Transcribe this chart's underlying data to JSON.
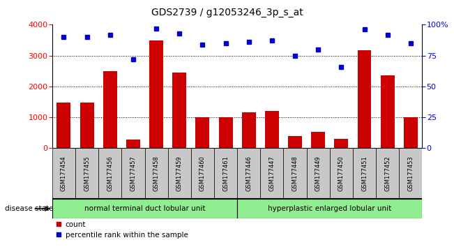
{
  "title": "GDS2739 / g12053246_3p_s_at",
  "categories": [
    "GSM177454",
    "GSM177455",
    "GSM177456",
    "GSM177457",
    "GSM177458",
    "GSM177459",
    "GSM177460",
    "GSM177461",
    "GSM177446",
    "GSM177447",
    "GSM177448",
    "GSM177449",
    "GSM177450",
    "GSM177451",
    "GSM177452",
    "GSM177453"
  ],
  "counts": [
    1480,
    1480,
    2500,
    270,
    3480,
    2450,
    1010,
    1010,
    1160,
    1210,
    390,
    540,
    310,
    3180,
    2370,
    1010
  ],
  "percentiles": [
    90,
    90,
    92,
    72,
    97,
    93,
    84,
    85,
    86,
    87,
    75,
    80,
    66,
    96,
    92,
    85
  ],
  "group1_label": "normal terminal duct lobular unit",
  "group2_label": "hyperplastic enlarged lobular unit",
  "group1_count": 8,
  "group2_count": 8,
  "ylim_left": [
    0,
    4000
  ],
  "ylim_right": [
    0,
    100
  ],
  "yticks_left": [
    0,
    1000,
    2000,
    3000,
    4000
  ],
  "yticks_right": [
    0,
    25,
    50,
    75,
    100
  ],
  "bar_color": "#cc0000",
  "dot_color": "#0000cc",
  "group_color": "#90ee90",
  "label_box_color": "#c8c8c8",
  "disease_state_label": "disease state",
  "legend_count_label": "count",
  "legend_pct_label": "percentile rank within the sample",
  "title_fontsize": 10,
  "tick_fontsize": 8,
  "label_fontsize": 6,
  "group_fontsize": 7.5,
  "legend_fontsize": 7.5
}
